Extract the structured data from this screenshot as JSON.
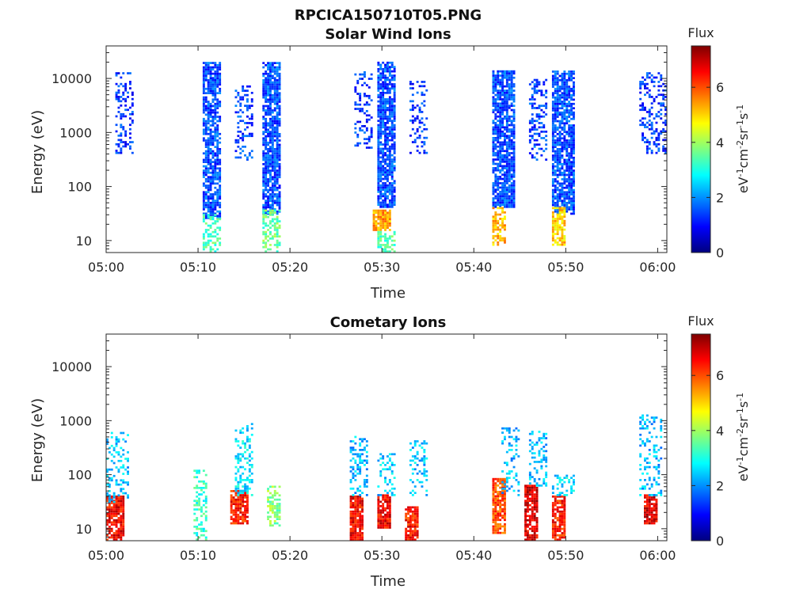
{
  "figure_title": "RPCICA150710T05.PNG",
  "colormap": [
    "#00007f",
    "#0000ff",
    "#007fff",
    "#00ffff",
    "#7fff7f",
    "#ffff00",
    "#ff7f00",
    "#ff0000",
    "#7f0000"
  ],
  "chart_data": [
    {
      "type": "heatmap",
      "title": "Solar Wind Ions",
      "xlabel": "Time",
      "ylabel": "Energy (eV)",
      "yscale": "log",
      "ylim": [
        6,
        40000
      ],
      "xlim": [
        "05:00",
        "06:01"
      ],
      "xticks": [
        "05:00",
        "05:10",
        "05:20",
        "05:30",
        "05:40",
        "05:50",
        "06:00"
      ],
      "yticks": [
        10,
        100,
        1000,
        10000
      ],
      "ytick_labels": [
        "10",
        "100",
        "1000",
        "10000"
      ],
      "colorbar": {
        "label": "Flux",
        "unit_label": "eV-1cm-2sr-1s-1",
        "range": [
          0,
          7.5
        ],
        "ticks": [
          0,
          2,
          4,
          6
        ],
        "tick_labels": [
          "0",
          "2",
          "4",
          "6"
        ]
      },
      "bursts": [
        {
          "t0": "05:01",
          "t1": "05:03",
          "e_min": 400,
          "e_max": 13000,
          "flux": 1.3,
          "density": 0.35
        },
        {
          "t0": "05:10.5",
          "t1": "05:12.5",
          "e_min": 25,
          "e_max": 20000,
          "flux": 1.5,
          "density": 0.75
        },
        {
          "t0": "05:10.5",
          "t1": "05:12.5",
          "e_min": 6,
          "e_max": 30,
          "flux": 3.4,
          "density": 0.5
        },
        {
          "t0": "05:14",
          "t1": "05:16",
          "e_min": 300,
          "e_max": 7000,
          "flux": 1.4,
          "density": 0.35
        },
        {
          "t0": "05:17",
          "t1": "05:19",
          "e_min": 30,
          "e_max": 20000,
          "flux": 1.5,
          "density": 0.8
        },
        {
          "t0": "05:17",
          "t1": "05:19",
          "e_min": 6,
          "e_max": 35,
          "flux": 3.6,
          "density": 0.5
        },
        {
          "t0": "05:27",
          "t1": "05:29",
          "e_min": 500,
          "e_max": 13000,
          "flux": 1.3,
          "density": 0.35
        },
        {
          "t0": "05:29.5",
          "t1": "05:31.5",
          "e_min": 40,
          "e_max": 20000,
          "flux": 1.5,
          "density": 0.8
        },
        {
          "t0": "05:29",
          "t1": "05:31",
          "e_min": 15,
          "e_max": 35,
          "flux": 5.4,
          "density": 0.85
        },
        {
          "t0": "05:29.5",
          "t1": "05:31.5",
          "e_min": 6,
          "e_max": 15,
          "flux": 3.4,
          "density": 0.5
        },
        {
          "t0": "05:33",
          "t1": "05:35",
          "e_min": 400,
          "e_max": 9000,
          "flux": 1.3,
          "density": 0.3
        },
        {
          "t0": "05:42",
          "t1": "05:44.5",
          "e_min": 40,
          "e_max": 13000,
          "flux": 1.5,
          "density": 0.8
        },
        {
          "t0": "05:42",
          "t1": "05:43.5",
          "e_min": 8,
          "e_max": 40,
          "flux": 5.2,
          "density": 0.6
        },
        {
          "t0": "05:46",
          "t1": "05:48",
          "e_min": 300,
          "e_max": 9000,
          "flux": 1.4,
          "density": 0.35
        },
        {
          "t0": "05:48.5",
          "t1": "05:51",
          "e_min": 30,
          "e_max": 13000,
          "flux": 1.5,
          "density": 0.8
        },
        {
          "t0": "05:48.5",
          "t1": "05:50",
          "e_min": 8,
          "e_max": 40,
          "flux": 5.0,
          "density": 0.7
        },
        {
          "t0": "05:58",
          "t1": "06:01",
          "e_min": 400,
          "e_max": 13000,
          "flux": 1.3,
          "density": 0.35
        }
      ]
    },
    {
      "type": "heatmap",
      "title": "Cometary Ions",
      "xlabel": "Time",
      "ylabel": "Energy (eV)",
      "yscale": "log",
      "ylim": [
        6,
        40000
      ],
      "xlim": [
        "05:00",
        "06:01"
      ],
      "xticks": [
        "05:00",
        "05:10",
        "05:20",
        "05:30",
        "05:40",
        "05:50",
        "06:00"
      ],
      "yticks": [
        10,
        100,
        1000,
        10000
      ],
      "ytick_labels": [
        "10",
        "100",
        "1000",
        "10000"
      ],
      "colorbar": {
        "label": "Flux",
        "unit_label": "eV-1cm-2sr-1s-1",
        "range": [
          0,
          7.5
        ],
        "ticks": [
          0,
          2,
          4,
          6
        ],
        "tick_labels": [
          "0",
          "2",
          "4",
          "6"
        ]
      },
      "bursts": [
        {
          "t0": "05:00",
          "t1": "05:02",
          "e_min": 6,
          "e_max": 40,
          "flux": 6.6,
          "density": 0.85
        },
        {
          "t0": "05:00",
          "t1": "05:02.5",
          "e_min": 30,
          "e_max": 600,
          "flux": 2.4,
          "density": 0.3
        },
        {
          "t0": "05:09.5",
          "t1": "05:11",
          "e_min": 6,
          "e_max": 120,
          "flux": 3.2,
          "density": 0.4
        },
        {
          "t0": "05:13.5",
          "t1": "05:15.5",
          "e_min": 12,
          "e_max": 50,
          "flux": 6.4,
          "density": 0.8
        },
        {
          "t0": "05:14",
          "t1": "05:16",
          "e_min": 40,
          "e_max": 900,
          "flux": 2.6,
          "density": 0.35
        },
        {
          "t0": "05:17.5",
          "t1": "05:19",
          "e_min": 10,
          "e_max": 60,
          "flux": 3.8,
          "density": 0.5
        },
        {
          "t0": "05:26.5",
          "t1": "05:28",
          "e_min": 6,
          "e_max": 40,
          "flux": 6.6,
          "density": 0.85
        },
        {
          "t0": "05:26.5",
          "t1": "05:28.5",
          "e_min": 40,
          "e_max": 500,
          "flux": 2.3,
          "density": 0.3
        },
        {
          "t0": "05:29.5",
          "t1": "05:31",
          "e_min": 10,
          "e_max": 40,
          "flux": 6.6,
          "density": 0.85
        },
        {
          "t0": "05:29.5",
          "t1": "05:31.5",
          "e_min": 40,
          "e_max": 250,
          "flux": 2.4,
          "density": 0.3
        },
        {
          "t0": "05:32.5",
          "t1": "05:34",
          "e_min": 6,
          "e_max": 25,
          "flux": 6.4,
          "density": 0.8
        },
        {
          "t0": "05:33",
          "t1": "05:35",
          "e_min": 40,
          "e_max": 400,
          "flux": 2.4,
          "density": 0.3
        },
        {
          "t0": "05:42",
          "t1": "05:43.5",
          "e_min": 8,
          "e_max": 80,
          "flux": 6.0,
          "density": 0.75
        },
        {
          "t0": "05:43",
          "t1": "05:45",
          "e_min": 40,
          "e_max": 700,
          "flux": 2.3,
          "density": 0.3
        },
        {
          "t0": "05:45.5",
          "t1": "05:47",
          "e_min": 6,
          "e_max": 60,
          "flux": 6.8,
          "density": 0.85
        },
        {
          "t0": "05:46",
          "t1": "05:48",
          "e_min": 60,
          "e_max": 600,
          "flux": 2.3,
          "density": 0.3
        },
        {
          "t0": "05:48.5",
          "t1": "05:50",
          "e_min": 6,
          "e_max": 40,
          "flux": 6.4,
          "density": 0.85
        },
        {
          "t0": "05:48.5",
          "t1": "05:51",
          "e_min": 40,
          "e_max": 100,
          "flux": 2.6,
          "density": 0.35
        },
        {
          "t0": "05:58.5",
          "t1": "06:00",
          "e_min": 12,
          "e_max": 40,
          "flux": 6.8,
          "density": 0.85
        },
        {
          "t0": "05:58",
          "t1": "06:00.5",
          "e_min": 40,
          "e_max": 1200,
          "flux": 2.3,
          "density": 0.3
        }
      ]
    }
  ]
}
